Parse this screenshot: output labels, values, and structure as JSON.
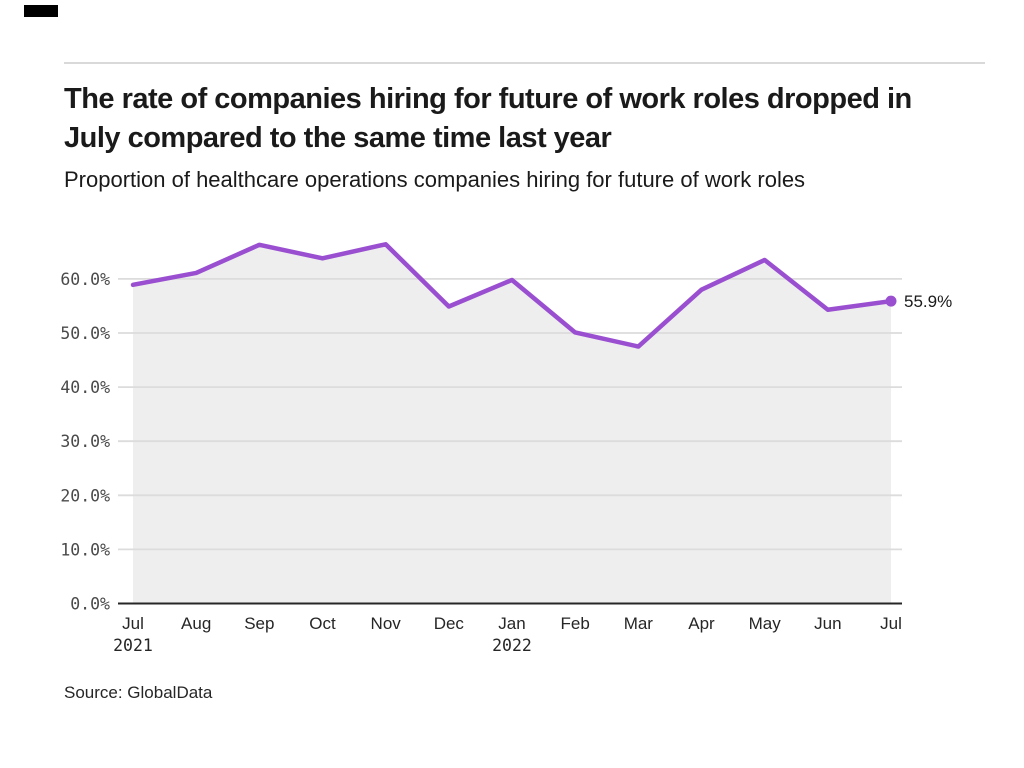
{
  "chart_data": {
    "type": "line",
    "title": "The rate of companies hiring for future of work roles dropped in July compared to the same time last year",
    "subtitle": "Proportion of healthcare operations companies hiring for future of work roles",
    "source": "Source: GlobalData",
    "categories": [
      "Jul 2021",
      "Aug 2021",
      "Sep 2021",
      "Oct 2021",
      "Nov 2021",
      "Dec 2021",
      "Jan 2022",
      "Feb 2022",
      "Mar 2022",
      "Apr 2022",
      "May 2022",
      "Jun 2022",
      "Jul 2022"
    ],
    "x_months": [
      "Jul",
      "Aug",
      "Sep",
      "Oct",
      "Nov",
      "Dec",
      "Jan",
      "Feb",
      "Mar",
      "Apr",
      "May",
      "Jun",
      "Jul"
    ],
    "x_years": {
      "0": "2021",
      "6": "2022"
    },
    "values": [
      58.9,
      61.1,
      66.3,
      63.8,
      66.4,
      54.9,
      59.8,
      50.1,
      47.5,
      58.0,
      63.5,
      54.3,
      55.9
    ],
    "unit": "%",
    "ylim": [
      0,
      70
    ],
    "y_ticks": [
      0,
      10,
      20,
      30,
      40,
      50,
      60
    ],
    "y_tick_labels": [
      "0.0%",
      "10.0%",
      "20.0%",
      "30.0%",
      "40.0%",
      "50.0%",
      "60.0%"
    ],
    "end_label": "55.9%",
    "grid": "horizontal-only",
    "legend": "none",
    "area_fill": true
  },
  "colors": {
    "line": "#9a4fd1",
    "end_dot": "#9a4fd1",
    "area": "#eeeeee",
    "gridline": "#dcdcdc",
    "axis_line": "#262626",
    "y_tick_text": "#4a4a4a",
    "x_tick_text": "#262626",
    "end_label_text": "#1a1a1a",
    "accent_bar": "#000000",
    "divider": "#d9d9d9"
  }
}
